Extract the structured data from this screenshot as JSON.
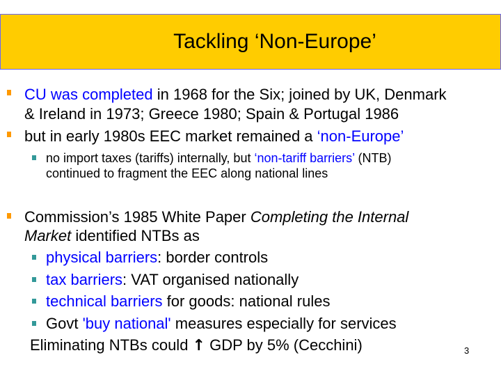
{
  "title": "Tackling ‘Non-Europe’",
  "colors": {
    "title_bg": "#FFCC00",
    "title_border": "#6666FF",
    "bullet_main": "#FF9900",
    "bullet_sub": "#339999",
    "highlight": "#0000FF"
  },
  "bullets": {
    "b1": {
      "hl": "CU was completed",
      "rest1": " in 1968 for the Six; joined by UK, Denmark",
      "line2": "& Ireland in 1973; Greece 1980; Spain & Portugal 1986"
    },
    "b2": {
      "text": "but in early 1980s EEC market remained a ",
      "hl": "‘non-Europe’"
    },
    "b2s": {
      "text1": "no import taxes (tariffs) internally, but ",
      "hl": "‘non-tariff barriers’",
      "text2": " (NTB)",
      "line2": "continued to fragment the EEC along national lines"
    },
    "b3": {
      "text1": "Commission’s 1985 White Paper ",
      "it1": "Completing the Internal",
      "it2": "Market",
      "text2": " identified NTBs as"
    },
    "s1": {
      "hl": "physical barriers",
      "rest": ": border controls"
    },
    "s2": {
      "hl": "tax barriers",
      "rest": ": VAT organised nationally"
    },
    "s3": {
      "hl": "technical barriers",
      "rest": " for goods: national rules"
    },
    "s4": {
      "pre": "Govt ",
      "hl": "'buy national'",
      "rest": " measures especially for services"
    },
    "final": {
      "pre": "Eliminating NTBs could ",
      "arrow": "↑",
      "post": " GDP by 5% (Cecchini)"
    }
  },
  "page_number": "3"
}
